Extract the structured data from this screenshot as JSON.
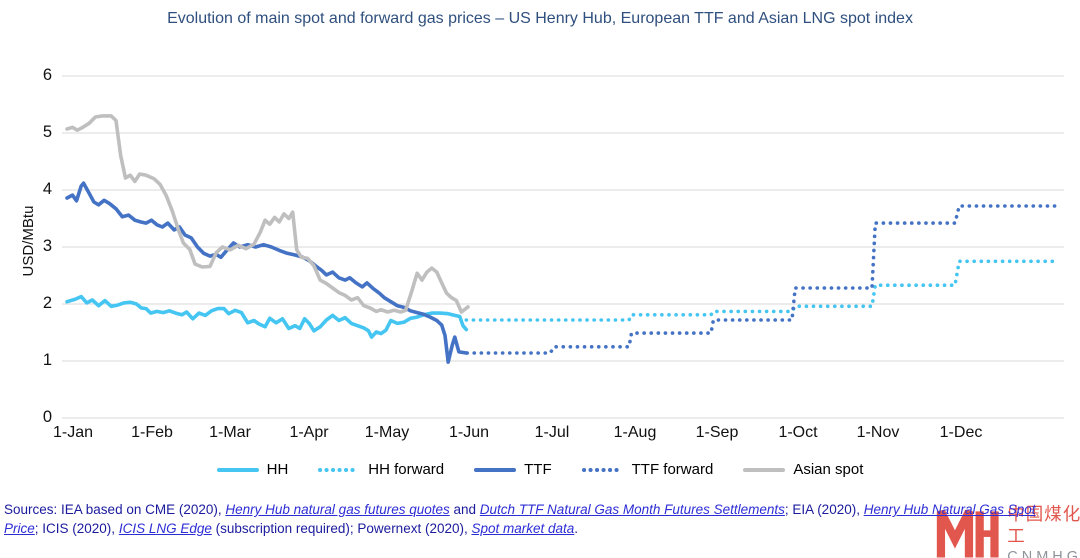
{
  "title": "Evolution of main spot and forward gas prices – US Henry Hub, European TTF and Asian LNG spot index",
  "y_axis": {
    "label": "USD/MBtu",
    "ticks": [
      "0",
      "1",
      "2",
      "3",
      "4",
      "5",
      "6"
    ]
  },
  "x_axis": {
    "ticks": [
      "1-Jan",
      "1-Feb",
      "1-Mar",
      "1-Apr",
      "1-May",
      "1-Jun",
      "1-Jul",
      "1-Aug",
      "1-Sep",
      "1-Oct",
      "1-Nov",
      "1-Dec"
    ]
  },
  "legend": [
    {
      "label": "HH",
      "color": "#45c5f1",
      "style": "solid"
    },
    {
      "label": "HH forward",
      "color": "#45c5f1",
      "style": "dotted"
    },
    {
      "label": "TTF",
      "color": "#4472c4",
      "style": "solid"
    },
    {
      "label": "TTF forward",
      "color": "#4472c4",
      "style": "dotted"
    },
    {
      "label": "Asian spot",
      "color": "#bfbfbf",
      "style": "solid"
    }
  ],
  "chart_data": {
    "type": "line",
    "title": "Evolution of main spot and forward gas prices – US Henry Hub, European TTF and Asian LNG spot index",
    "xlabel": "",
    "ylabel": "USD/MBtu",
    "ylim": [
      0,
      6
    ],
    "grid": true,
    "legend_position": "bottom",
    "x_unit": "months since 1-Jan (0 = 1-Jan, 11 = 1-Dec)",
    "x_tick_labels": [
      "1-Jan",
      "1-Feb",
      "1-Mar",
      "1-Apr",
      "1-May",
      "1-Jun",
      "1-Jul",
      "1-Aug",
      "1-Sep",
      "1-Oct",
      "1-Nov",
      "1-Dec"
    ],
    "series": [
      {
        "name": "HH",
        "color": "#45c5f1",
        "line": "solid",
        "points": [
          [
            0,
            2.04
          ],
          [
            0.1,
            2.08
          ],
          [
            0.18,
            2.13
          ],
          [
            0.25,
            2.02
          ],
          [
            0.32,
            2.07
          ],
          [
            0.4,
            1.97
          ],
          [
            0.48,
            2.06
          ],
          [
            0.56,
            1.96
          ],
          [
            0.64,
            1.98
          ],
          [
            0.72,
            2.02
          ],
          [
            0.8,
            2.03
          ],
          [
            0.88,
            2.0
          ],
          [
            0.94,
            1.93
          ],
          [
            1.0,
            1.92
          ],
          [
            1.06,
            1.84
          ],
          [
            1.14,
            1.87
          ],
          [
            1.22,
            1.85
          ],
          [
            1.3,
            1.88
          ],
          [
            1.38,
            1.84
          ],
          [
            1.46,
            1.81
          ],
          [
            1.52,
            1.86
          ],
          [
            1.6,
            1.74
          ],
          [
            1.68,
            1.84
          ],
          [
            1.76,
            1.8
          ],
          [
            1.84,
            1.88
          ],
          [
            1.92,
            1.92
          ],
          [
            2.0,
            1.92
          ],
          [
            2.06,
            1.83
          ],
          [
            2.14,
            1.89
          ],
          [
            2.22,
            1.85
          ],
          [
            2.3,
            1.67
          ],
          [
            2.38,
            1.71
          ],
          [
            2.44,
            1.65
          ],
          [
            2.52,
            1.6
          ],
          [
            2.58,
            1.75
          ],
          [
            2.66,
            1.67
          ],
          [
            2.74,
            1.74
          ],
          [
            2.82,
            1.57
          ],
          [
            2.9,
            1.62
          ],
          [
            2.96,
            1.57
          ],
          [
            3.02,
            1.74
          ],
          [
            3.08,
            1.66
          ],
          [
            3.14,
            1.53
          ],
          [
            3.22,
            1.6
          ],
          [
            3.3,
            1.72
          ],
          [
            3.38,
            1.8
          ],
          [
            3.46,
            1.71
          ],
          [
            3.54,
            1.76
          ],
          [
            3.62,
            1.66
          ],
          [
            3.7,
            1.62
          ],
          [
            3.78,
            1.58
          ],
          [
            3.84,
            1.53
          ],
          [
            3.88,
            1.42
          ],
          [
            3.94,
            1.51
          ],
          [
            4.0,
            1.48
          ],
          [
            4.06,
            1.54
          ],
          [
            4.12,
            1.71
          ],
          [
            4.2,
            1.66
          ],
          [
            4.28,
            1.68
          ],
          [
            4.36,
            1.75
          ],
          [
            4.44,
            1.77
          ],
          [
            4.52,
            1.81
          ],
          [
            4.62,
            1.84
          ],
          [
            4.72,
            1.84
          ],
          [
            4.82,
            1.83
          ],
          [
            4.9,
            1.8
          ],
          [
            4.96,
            1.78
          ],
          [
            5.0,
            1.62
          ],
          [
            5.04,
            1.55
          ]
        ]
      },
      {
        "name": "HH forward",
        "color": "#45c5f1",
        "line": "dotted",
        "points": [
          [
            5.04,
            1.72
          ],
          [
            7.0,
            1.72
          ],
          [
            7.03,
            1.81
          ],
          [
            8.0,
            1.81
          ],
          [
            8.03,
            1.87
          ],
          [
            9.0,
            1.87
          ],
          [
            9.04,
            1.96
          ],
          [
            10.0,
            1.96
          ],
          [
            10.04,
            2.33
          ],
          [
            11.0,
            2.33
          ],
          [
            11.05,
            2.75
          ],
          [
            12.25,
            2.75
          ]
        ]
      },
      {
        "name": "TTF",
        "color": "#4472c4",
        "line": "solid",
        "points": [
          [
            0,
            3.86
          ],
          [
            0.07,
            3.91
          ],
          [
            0.12,
            3.81
          ],
          [
            0.18,
            4.07
          ],
          [
            0.21,
            4.12
          ],
          [
            0.27,
            3.97
          ],
          [
            0.34,
            3.79
          ],
          [
            0.4,
            3.74
          ],
          [
            0.47,
            3.82
          ],
          [
            0.54,
            3.76
          ],
          [
            0.62,
            3.67
          ],
          [
            0.7,
            3.53
          ],
          [
            0.78,
            3.56
          ],
          [
            0.86,
            3.47
          ],
          [
            0.93,
            3.44
          ],
          [
            1.0,
            3.42
          ],
          [
            1.07,
            3.47
          ],
          [
            1.14,
            3.39
          ],
          [
            1.21,
            3.35
          ],
          [
            1.28,
            3.42
          ],
          [
            1.36,
            3.3
          ],
          [
            1.43,
            3.35
          ],
          [
            1.5,
            3.21
          ],
          [
            1.58,
            3.16
          ],
          [
            1.66,
            3.0
          ],
          [
            1.74,
            2.89
          ],
          [
            1.82,
            2.84
          ],
          [
            1.9,
            2.87
          ],
          [
            1.96,
            2.82
          ],
          [
            2.04,
            2.95
          ],
          [
            2.12,
            3.07
          ],
          [
            2.2,
            3.0
          ],
          [
            2.3,
            3.04
          ],
          [
            2.4,
            3.0
          ],
          [
            2.5,
            3.04
          ],
          [
            2.6,
            3.0
          ],
          [
            2.7,
            2.94
          ],
          [
            2.8,
            2.89
          ],
          [
            2.9,
            2.86
          ],
          [
            3.0,
            2.82
          ],
          [
            3.08,
            2.76
          ],
          [
            3.16,
            2.67
          ],
          [
            3.24,
            2.59
          ],
          [
            3.3,
            2.51
          ],
          [
            3.38,
            2.56
          ],
          [
            3.46,
            2.46
          ],
          [
            3.54,
            2.42
          ],
          [
            3.6,
            2.46
          ],
          [
            3.68,
            2.37
          ],
          [
            3.76,
            2.3
          ],
          [
            3.82,
            2.37
          ],
          [
            3.9,
            2.27
          ],
          [
            3.98,
            2.19
          ],
          [
            4.04,
            2.11
          ],
          [
            4.12,
            2.04
          ],
          [
            4.2,
            1.97
          ],
          [
            4.28,
            1.94
          ],
          [
            4.36,
            1.88
          ],
          [
            4.44,
            1.85
          ],
          [
            4.52,
            1.82
          ],
          [
            4.6,
            1.77
          ],
          [
            4.68,
            1.71
          ],
          [
            4.74,
            1.63
          ],
          [
            4.78,
            1.45
          ],
          [
            4.82,
            0.98
          ],
          [
            4.87,
            1.28
          ],
          [
            4.9,
            1.42
          ],
          [
            4.95,
            1.16
          ],
          [
            5.04,
            1.14
          ]
        ]
      },
      {
        "name": "TTF forward",
        "color": "#4472c4",
        "line": "dotted",
        "points": [
          [
            5.05,
            1.14
          ],
          [
            6.05,
            1.14
          ],
          [
            6.1,
            1.25
          ],
          [
            7.0,
            1.25
          ],
          [
            7.03,
            1.49
          ],
          [
            8.0,
            1.49
          ],
          [
            8.03,
            1.72
          ],
          [
            9.0,
            1.72
          ],
          [
            9.04,
            2.28
          ],
          [
            10.0,
            2.28
          ],
          [
            10.04,
            3.42
          ],
          [
            11.0,
            3.42
          ],
          [
            11.05,
            3.72
          ],
          [
            12.25,
            3.72
          ]
        ]
      },
      {
        "name": "Asian spot",
        "color": "#bfbfbf",
        "line": "solid",
        "points": [
          [
            0,
            5.07
          ],
          [
            0.07,
            5.1
          ],
          [
            0.13,
            5.05
          ],
          [
            0.2,
            5.1
          ],
          [
            0.28,
            5.17
          ],
          [
            0.36,
            5.28
          ],
          [
            0.45,
            5.3
          ],
          [
            0.56,
            5.3
          ],
          [
            0.62,
            5.22
          ],
          [
            0.68,
            4.6
          ],
          [
            0.74,
            4.21
          ],
          [
            0.8,
            4.26
          ],
          [
            0.86,
            4.15
          ],
          [
            0.92,
            4.28
          ],
          [
            1.0,
            4.26
          ],
          [
            1.1,
            4.2
          ],
          [
            1.18,
            4.1
          ],
          [
            1.26,
            3.9
          ],
          [
            1.34,
            3.62
          ],
          [
            1.42,
            3.28
          ],
          [
            1.48,
            3.07
          ],
          [
            1.56,
            2.96
          ],
          [
            1.63,
            2.7
          ],
          [
            1.72,
            2.65
          ],
          [
            1.82,
            2.66
          ],
          [
            1.9,
            2.9
          ],
          [
            1.98,
            3.0
          ],
          [
            2.08,
            2.95
          ],
          [
            2.18,
            3.03
          ],
          [
            2.28,
            2.97
          ],
          [
            2.38,
            3.05
          ],
          [
            2.46,
            3.26
          ],
          [
            2.52,
            3.47
          ],
          [
            2.58,
            3.4
          ],
          [
            2.64,
            3.52
          ],
          [
            2.7,
            3.44
          ],
          [
            2.76,
            3.58
          ],
          [
            2.82,
            3.5
          ],
          [
            2.87,
            3.61
          ],
          [
            2.92,
            2.95
          ],
          [
            2.98,
            2.82
          ],
          [
            3.06,
            2.8
          ],
          [
            3.14,
            2.67
          ],
          [
            3.22,
            2.42
          ],
          [
            3.3,
            2.36
          ],
          [
            3.38,
            2.28
          ],
          [
            3.46,
            2.2
          ],
          [
            3.54,
            2.15
          ],
          [
            3.62,
            2.07
          ],
          [
            3.7,
            2.11
          ],
          [
            3.78,
            1.97
          ],
          [
            3.86,
            1.93
          ],
          [
            3.94,
            1.87
          ],
          [
            4.0,
            1.9
          ],
          [
            4.08,
            1.86
          ],
          [
            4.16,
            1.89
          ],
          [
            4.24,
            1.86
          ],
          [
            4.3,
            1.89
          ],
          [
            4.38,
            2.25
          ],
          [
            4.44,
            2.54
          ],
          [
            4.5,
            2.42
          ],
          [
            4.56,
            2.56
          ],
          [
            4.62,
            2.63
          ],
          [
            4.68,
            2.56
          ],
          [
            4.74,
            2.37
          ],
          [
            4.8,
            2.19
          ],
          [
            4.86,
            2.11
          ],
          [
            4.92,
            2.06
          ],
          [
            4.98,
            1.86
          ],
          [
            5.06,
            1.95
          ]
        ]
      }
    ]
  },
  "sources": {
    "lines": [
      [
        {
          "t": "Sources: IEA based on CME (2020), ",
          "link": false
        },
        {
          "t": "Henry Hub natural gas futures quotes",
          "link": true
        },
        {
          "t": " and ",
          "link": false
        },
        {
          "t": "Dutch TTF Natural Gas Month Futures Settlements",
          "link": true
        },
        {
          "t": "; EIA (2020), ",
          "link": false
        },
        {
          "t": "Henry Hub Natural Gas Spot",
          "link": true
        }
      ],
      [
        {
          "t": "Price",
          "link": true
        },
        {
          "t": "; ICIS (2020), ",
          "link": false
        },
        {
          "t": "ICIS LNG Edge",
          "link": true
        },
        {
          "t": " (subscription required); Powernext (2020), ",
          "link": false
        },
        {
          "t": "Spot market data",
          "link": true
        },
        {
          "t": ".",
          "link": false
        }
      ]
    ]
  },
  "watermark": {
    "cn": "中国煤化工",
    "en": "CNMHG"
  },
  "colors": {
    "title": "#2f4f7e",
    "gridline": "#d9d9d9",
    "hh": "#45c5f1",
    "ttf": "#4472c4",
    "asian_spot": "#bfbfbf",
    "source_text": "#1b1b9e",
    "source_link": "#2d2dd6",
    "watermark_red": "#e2574d",
    "watermark_gray": "#8d939a"
  }
}
